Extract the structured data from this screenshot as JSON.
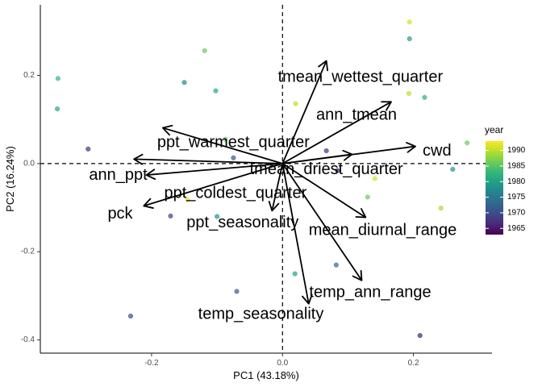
{
  "chart_data": {
    "type": "scatter",
    "subtype": "pca-biplot",
    "xlabel": "PC1 (43.18%)",
    "ylabel": "PC2 (16.24%)",
    "xlim": [
      -0.37,
      0.32
    ],
    "ylim": [
      -0.43,
      0.36
    ],
    "x_ticks": [
      -0.2,
      0.0,
      0.2
    ],
    "x_tick_labels": [
      "-0.2",
      "0.0",
      "0.2"
    ],
    "y_ticks": [
      -0.4,
      -0.2,
      0.0,
      0.2
    ],
    "y_tick_labels": [
      "-0.4",
      "-0.2",
      "0.0",
      "0.2"
    ],
    "grid": false,
    "reference_lines": [
      {
        "axis": "x",
        "value": 0,
        "style": "dashed"
      },
      {
        "axis": "y",
        "value": 0,
        "style": "dashed"
      }
    ],
    "legend": {
      "title": "year",
      "position": "right",
      "type": "colorbar",
      "range": [
        1963,
        1993
      ],
      "breaks": [
        1965,
        1970,
        1975,
        1980,
        1985,
        1990
      ],
      "break_labels": [
        "1965",
        "1970",
        "1975",
        "1980",
        "1985",
        "1990"
      ],
      "palette": [
        "#440154",
        "#482878",
        "#3e4a89",
        "#31688e",
        "#26828e",
        "#1f9e89",
        "#35b779",
        "#6ece58",
        "#b5de2b",
        "#fde725"
      ]
    },
    "points": [
      {
        "x": -0.343,
        "y": 0.193,
        "year": 1983
      },
      {
        "x": -0.344,
        "y": 0.124,
        "year": 1981
      },
      {
        "x": -0.297,
        "y": 0.033,
        "year": 1967
      },
      {
        "x": -0.119,
        "y": 0.256,
        "year": 1986
      },
      {
        "x": -0.15,
        "y": 0.184,
        "year": 1977
      },
      {
        "x": -0.102,
        "y": 0.165,
        "year": 1981
      },
      {
        "x": -0.087,
        "y": 0.055,
        "year": 1986
      },
      {
        "x": -0.075,
        "y": 0.013,
        "year": 1971
      },
      {
        "x": -0.145,
        "y": -0.082,
        "year": 1992
      },
      {
        "x": -0.171,
        "y": -0.119,
        "year": 1969
      },
      {
        "x": -0.1,
        "y": -0.12,
        "year": 1979
      },
      {
        "x": -0.07,
        "y": -0.29,
        "year": 1972
      },
      {
        "x": -0.232,
        "y": -0.346,
        "year": 1970
      },
      {
        "x": 0.02,
        "y": 0.136,
        "year": 1990
      },
      {
        "x": 0.067,
        "y": 0.029,
        "year": 1968
      },
      {
        "x": 0.084,
        "y": -0.016,
        "year": 1966
      },
      {
        "x": 0.141,
        "y": -0.034,
        "year": 1991
      },
      {
        "x": 0.13,
        "y": -0.076,
        "year": 1986
      },
      {
        "x": 0.082,
        "y": -0.23,
        "year": 1973
      },
      {
        "x": 0.019,
        "y": -0.25,
        "year": 1980
      },
      {
        "x": 0.194,
        "y": 0.321,
        "year": 1991
      },
      {
        "x": 0.194,
        "y": 0.283,
        "year": 1980
      },
      {
        "x": 0.193,
        "y": 0.159,
        "year": 1990
      },
      {
        "x": 0.217,
        "y": 0.15,
        "year": 1982
      },
      {
        "x": 0.282,
        "y": 0.047,
        "year": 1986
      },
      {
        "x": 0.26,
        "y": -0.013,
        "year": 1979
      },
      {
        "x": 0.242,
        "y": -0.101,
        "year": 1989
      },
      {
        "x": 0.21,
        "y": -0.39,
        "year": 1966
      }
    ],
    "loadings": [
      {
        "name": "tmean_wettest_quarter",
        "x": 0.067,
        "y": 0.233,
        "label_x": 0.119,
        "label_y": 0.196
      },
      {
        "name": "ann_tmean",
        "x": 0.166,
        "y": 0.14,
        "label_x": 0.113,
        "label_y": 0.11
      },
      {
        "name": "cwd",
        "x": 0.203,
        "y": 0.039,
        "label_x": 0.236,
        "label_y": 0.029
      },
      {
        "name": "ppt_warmest_quarter",
        "x": -0.183,
        "y": 0.081,
        "label_x": -0.075,
        "label_y": 0.048
      },
      {
        "name": "tmean_driest_quarter",
        "x": 0.106,
        "y": 0.021,
        "label_x": 0.067,
        "label_y": -0.013
      },
      {
        "name": "ann_ppt",
        "x": -0.227,
        "y": 0.01,
        "label_x": -0.251,
        "label_y": -0.026
      },
      {
        "name": "ppt_coldest_quarter",
        "x": -0.208,
        "y": -0.026,
        "label_x": -0.072,
        "label_y": -0.067
      },
      {
        "name": "pck",
        "x": -0.212,
        "y": -0.096,
        "label_x": -0.248,
        "label_y": -0.114
      },
      {
        "name": "ppt_seasonality",
        "x": -0.016,
        "y": -0.107,
        "label_x": -0.061,
        "label_y": -0.134
      },
      {
        "name": "mean_diurnal_range",
        "x": 0.127,
        "y": -0.122,
        "label_x": 0.153,
        "label_y": -0.151
      },
      {
        "name": "temp_ann_range",
        "x": 0.121,
        "y": -0.265,
        "label_x": 0.134,
        "label_y": -0.292
      },
      {
        "name": "temp_seasonality",
        "x": 0.04,
        "y": -0.318,
        "label_x": -0.033,
        "label_y": -0.341
      }
    ]
  }
}
